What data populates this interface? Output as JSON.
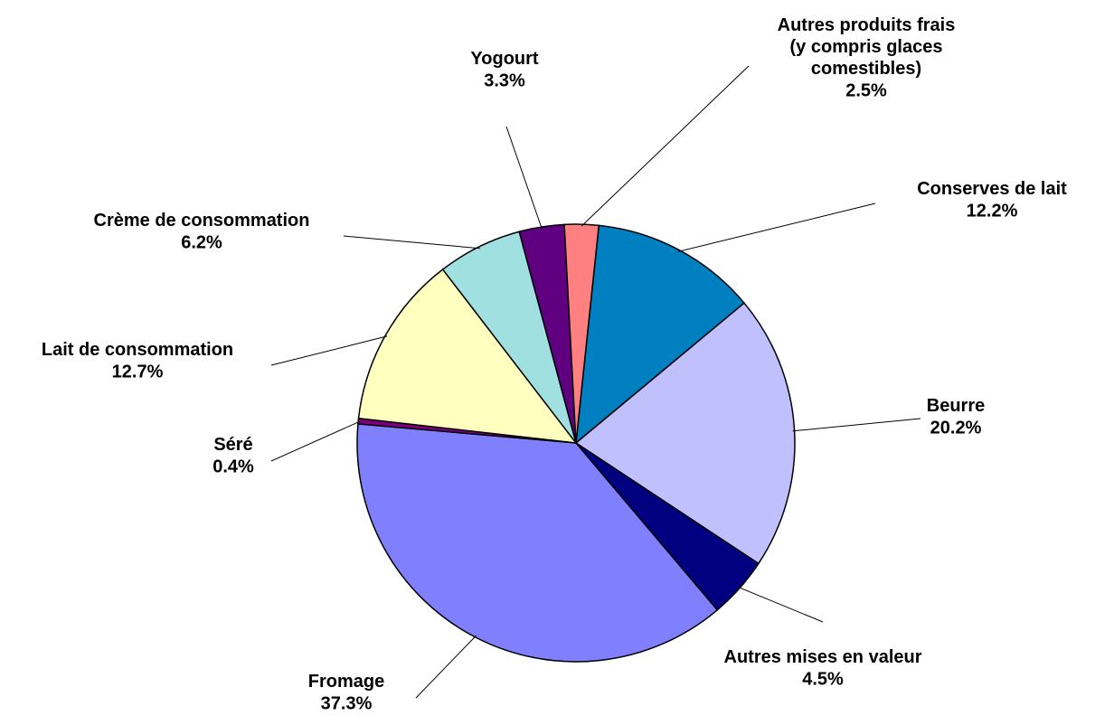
{
  "chart_data": {
    "type": "pie",
    "categories": [
      "Conserves de lait",
      "Beurre",
      "Autres mises en valeur",
      "Fromage",
      "Séré",
      "Lait de consommation",
      "Crème de consommation",
      "Yogourt",
      "Autres produits frais (y compris glaces comestibles)"
    ],
    "values": [
      12.2,
      20.2,
      4.5,
      37.3,
      0.4,
      12.7,
      6.2,
      3.3,
      2.5
    ],
    "value_labels": [
      "12.2%",
      "20.2%",
      "4.5%",
      "37.3%",
      "0.4%",
      "12.7%",
      "6.2%",
      "3.3%",
      "2.5%"
    ],
    "colors": [
      "#0080c0",
      "#c0c0ff",
      "#000080",
      "#8080ff",
      "#800080",
      "#ffffc0",
      "#a0e0e0",
      "#600080",
      "#ff8080"
    ]
  }
}
